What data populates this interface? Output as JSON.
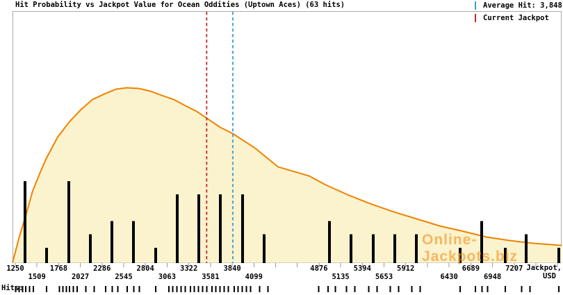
{
  "chart_data": {
    "type": "area",
    "title": "Hit Probability vs Jackpot Value for Ocean Oddities (Uptown Aces) (63 hits)",
    "total_hits": 63,
    "watermark": "Online-Jackpots.biz",
    "legend": {
      "position": "top-right",
      "items": [
        {
          "label": "Average Hit: 3,848",
          "marker": "dashed-vertical-line",
          "color": "#3f9ccc"
        },
        {
          "label": "Current Jackpot",
          "marker": "dashed-vertical-line",
          "color": "#c22b2b"
        }
      ]
    },
    "x_axis": {
      "title_line1": "Jackpot,",
      "title_line2": "USD",
      "min": 1217,
      "max": 7773,
      "tick_values": [
        1250,
        1509,
        1768,
        2027,
        2286,
        2545,
        2804,
        3063,
        3322,
        3581,
        3840,
        4099,
        4358,
        4617,
        4876,
        5135,
        5394,
        5653,
        5912,
        6171,
        6430,
        6689,
        6948,
        7207,
        7466,
        7725
      ],
      "labels": [
        {
          "text": "1250",
          "value": 1250,
          "row": 1
        },
        {
          "text": "1509",
          "value": 1509,
          "row": 2
        },
        {
          "text": "1768",
          "value": 1768,
          "row": 1
        },
        {
          "text": "2027",
          "value": 2027,
          "row": 2
        },
        {
          "text": "2286",
          "value": 2286,
          "row": 1
        },
        {
          "text": "2545",
          "value": 2545,
          "row": 2
        },
        {
          "text": "2804",
          "value": 2804,
          "row": 1
        },
        {
          "text": "3063",
          "value": 3063,
          "row": 2
        },
        {
          "text": "3322",
          "value": 3322,
          "row": 1
        },
        {
          "text": "3581",
          "value": 3581,
          "row": 2
        },
        {
          "text": "3840",
          "value": 3840,
          "row": 1
        },
        {
          "text": "4099",
          "value": 4099,
          "row": 2
        },
        {
          "text": "4876",
          "value": 4876,
          "row": 1
        },
        {
          "text": "5135",
          "value": 5135,
          "row": 2
        },
        {
          "text": "5394",
          "value": 5394,
          "row": 1
        },
        {
          "text": "5653",
          "value": 5653,
          "row": 2
        },
        {
          "text": "5912",
          "value": 5912,
          "row": 1
        },
        {
          "text": "6430",
          "value": 6430,
          "row": 2
        },
        {
          "text": "6689",
          "value": 6689,
          "row": 1
        },
        {
          "text": "6948",
          "value": 6948,
          "row": 2
        },
        {
          "text": "7207",
          "value": 7207,
          "row": 1
        }
      ]
    },
    "y_axis": {
      "visible": false,
      "grid": false
    },
    "average_hit": {
      "value": 3848,
      "line_color": "#3f9ccc",
      "line_style": "dashed"
    },
    "current_jackpot": {
      "value_estimate": 3535,
      "line_color": "#c22b2b",
      "line_style": "dashed"
    },
    "density_curve": {
      "stroke_color": "#f08200",
      "fill_color": "#fbf3cd",
      "peak_value": 2578,
      "points": [
        [
          1217,
          0.0
        ],
        [
          1300,
          0.151
        ],
        [
          1383,
          0.282
        ],
        [
          1457,
          0.409
        ],
        [
          1540,
          0.508
        ],
        [
          1623,
          0.599
        ],
        [
          1756,
          0.718
        ],
        [
          1897,
          0.806
        ],
        [
          2038,
          0.877
        ],
        [
          2171,
          0.933
        ],
        [
          2312,
          0.964
        ],
        [
          2453,
          0.992
        ],
        [
          2578,
          1.0
        ],
        [
          2727,
          0.996
        ],
        [
          2868,
          0.98
        ],
        [
          3001,
          0.956
        ],
        [
          3142,
          0.933
        ],
        [
          3283,
          0.897
        ],
        [
          3416,
          0.865
        ],
        [
          3540,
          0.825
        ],
        [
          3698,
          0.774
        ],
        [
          3847,
          0.738
        ],
        [
          4113,
          0.655
        ],
        [
          4387,
          0.548
        ],
        [
          4760,
          0.496
        ],
        [
          4943,
          0.448
        ],
        [
          5217,
          0.389
        ],
        [
          5491,
          0.337
        ],
        [
          5773,
          0.29
        ],
        [
          6047,
          0.25
        ],
        [
          6321,
          0.21
        ],
        [
          6603,
          0.179
        ],
        [
          6877,
          0.147
        ],
        [
          7151,
          0.127
        ],
        [
          7433,
          0.111
        ],
        [
          7773,
          0.099
        ]
      ]
    },
    "histogram": {
      "bar_color": "#000000",
      "bin_values": [
        1366,
        1623,
        1889,
        2146,
        2403,
        2661,
        2926,
        3184,
        3441,
        3698,
        3964,
        4221,
        5001,
        5258,
        5524,
        5781,
        6038,
        6561,
        6818,
        7100,
        7349,
        7739
      ],
      "counts": [
        6,
        1,
        6,
        2,
        3,
        3,
        1,
        5,
        5,
        5,
        5,
        2,
        3,
        2,
        2,
        2,
        2,
        1,
        3,
        1,
        2,
        1
      ]
    },
    "hits_rug": {
      "label": "Hits:",
      "values": [
        1256,
        1296,
        1336,
        1376,
        1421,
        1466,
        1623,
        1779,
        1819,
        1859,
        1899,
        1944,
        1989,
        2091,
        2191,
        2328,
        2408,
        2473,
        2586,
        2666,
        2731,
        2926,
        3084,
        3129,
        3179,
        3229,
        3279,
        3341,
        3386,
        3436,
        3486,
        3536,
        3598,
        3643,
        3693,
        3743,
        3793,
        3864,
        3909,
        3959,
        4009,
        4059,
        4166,
        4266,
        4871,
        4986,
        5071,
        5203,
        5303,
        5469,
        5569,
        5726,
        5826,
        5983,
        6083,
        6561,
        6743,
        6823,
        6888,
        7100,
        7294,
        7394,
        7739
      ]
    },
    "colors": {
      "plot_border": "#ababab",
      "axis_tick": "#999999",
      "background": "#ffffff"
    }
  }
}
